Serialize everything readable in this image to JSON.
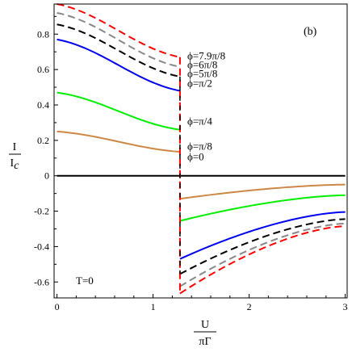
{
  "chart_data": {
    "type": "line",
    "panel_label": "(b)",
    "annotation": "T=0",
    "xlabel": {
      "num": "U",
      "den": "πΓ"
    },
    "ylabel": {
      "num": "I",
      "den": "I",
      "den_sub": "c"
    },
    "xlim": [
      -0.03,
      3.02
    ],
    "ylim": [
      -0.69,
      0.97
    ],
    "x_ticks": [
      0,
      1,
      2,
      3
    ],
    "x_tick_labels": [
      "0",
      "1",
      "2",
      "3"
    ],
    "y_ticks": [
      -0.6,
      -0.4,
      -0.2,
      0,
      0.2,
      0.4,
      0.6,
      0.8
    ],
    "y_tick_labels": [
      "-0.6",
      "-0.4",
      "-0.2",
      "0",
      "0.2",
      "0.4",
      "0.6",
      "0.8"
    ],
    "grid": false,
    "jump_x": 1.28,
    "series": [
      {
        "name": "ϕ=7.9π/8",
        "color": "#ff0000",
        "dash": true,
        "left": [
          0.97,
          0.67
        ],
        "right": [
          -0.665,
          -0.285
        ]
      },
      {
        "name": "ϕ=6π/8",
        "color": "#888888",
        "dash": true,
        "left": [
          0.92,
          0.615
        ],
        "right": [
          -0.625,
          -0.27
        ]
      },
      {
        "name": "ϕ=5π/8",
        "color": "#000000",
        "dash": true,
        "left": [
          0.855,
          0.56
        ],
        "right": [
          -0.555,
          -0.245
        ]
      },
      {
        "name": "ϕ=π/2",
        "color": "#0000ee",
        "dash": false,
        "left": [
          0.77,
          0.48
        ],
        "right": [
          -0.47,
          -0.205
        ]
      },
      {
        "name": "ϕ=π/4",
        "color": "#00ee00",
        "dash": false,
        "left": [
          0.47,
          0.26
        ],
        "right": [
          -0.255,
          -0.11
        ]
      },
      {
        "name": "ϕ=π/8",
        "color": "#cc8844",
        "dash": false,
        "left": [
          0.25,
          0.135
        ],
        "right": [
          -0.13,
          -0.05
        ]
      },
      {
        "name": "ϕ=0",
        "color": "#000000",
        "dash": false,
        "left": [
          0,
          0
        ],
        "right": [
          0,
          0
        ]
      }
    ],
    "label_y": [
      0.68,
      0.63,
      0.58,
      0.525,
      0.31,
      0.17,
      0.11
    ]
  }
}
